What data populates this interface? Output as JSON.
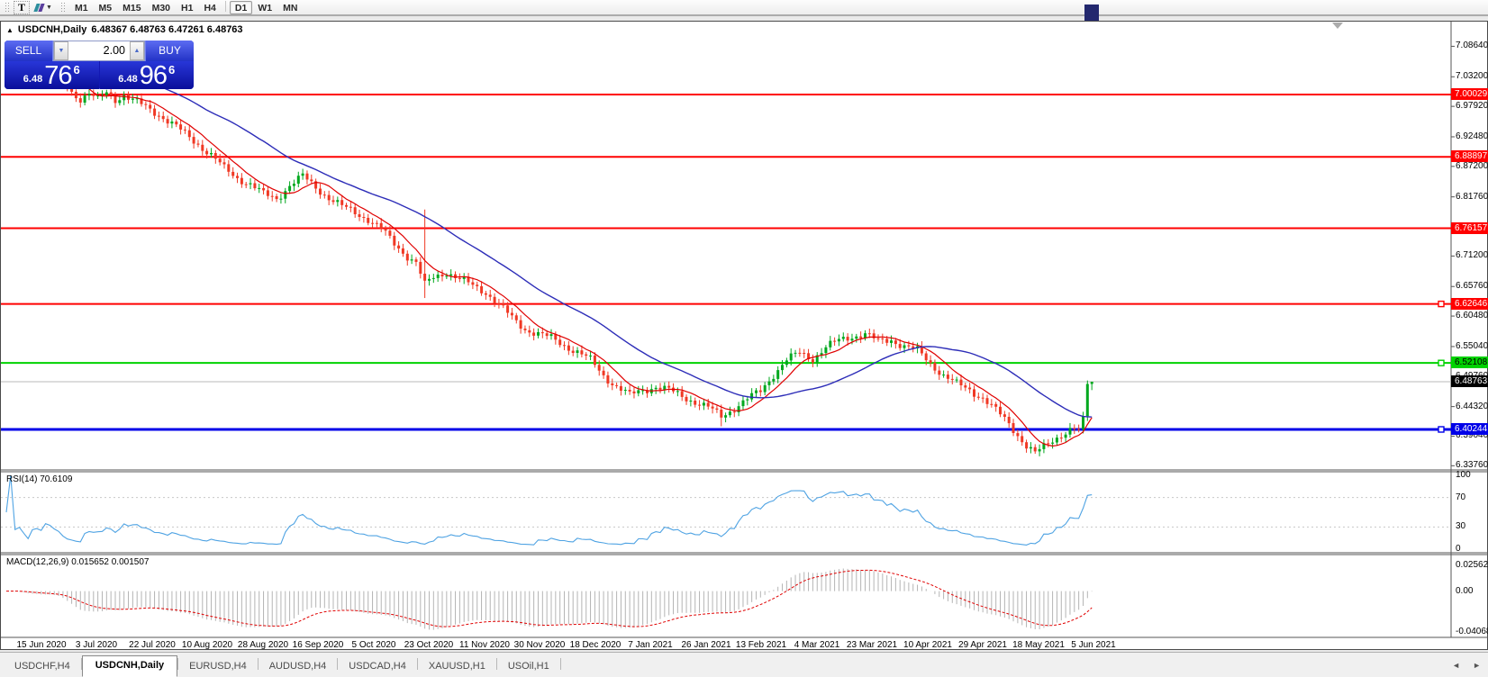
{
  "icons": {
    "collapse": "▲",
    "drop_caret": "▼",
    "spinner_up": "▲",
    "spinner_down": "▼",
    "tab_scroll_left": "◄",
    "tab_scroll_right": "►",
    "text_tool": "T"
  },
  "toolbar": {
    "timeframes": [
      "M1",
      "M5",
      "M15",
      "M30",
      "H1",
      "H4",
      "D1",
      "W1",
      "MN"
    ],
    "active_timeframe": "D1"
  },
  "chart": {
    "title": "USDCNH,Daily",
    "ohlc": "6.48367 6.48763 6.47261 6.48763"
  },
  "trade_panel": {
    "sell_label": "SELL",
    "buy_label": "BUY",
    "volume": "2.00",
    "sell_price": {
      "small": "6.48",
      "big": "76",
      "sup": "6"
    },
    "buy_price": {
      "small": "6.48",
      "big": "96",
      "sup": "6"
    }
  },
  "rsi": {
    "label": "RSI(14) 70.6109",
    "value": 70.6109
  },
  "macd": {
    "label": "MACD(12,26,9) 0.015652 0.001507",
    "values": [
      0.015652,
      0.001507
    ]
  },
  "tabs": {
    "items": [
      "USDCHF,H4",
      "USDCNH,Daily",
      "EURUSD,H4",
      "AUDUSD,H4",
      "USDCAD,H4",
      "XAUUSD,H1",
      "USOil,H1"
    ],
    "active": "USDCNH,Daily"
  },
  "chart_data": {
    "type": "candlestick",
    "symbol": "USDCNH",
    "timeframe": "Daily",
    "last_bar_ohlc": {
      "open": 6.48367,
      "high": 6.48763,
      "low": 6.47261,
      "close": 6.48763
    },
    "current_price": {
      "value": "6.48763",
      "numeric": 6.48763,
      "line_color": "#B8B8B8",
      "label_bg": "#000000"
    },
    "up_color": "#00A81E",
    "down_color": "#F03824",
    "price_axis_ticks": [
      "7.08640",
      "7.03200",
      "6.97920",
      "6.92480",
      "6.87200",
      "6.81760",
      "6.76320",
      "6.71200",
      "6.65760",
      "6.60480",
      "6.55040",
      "6.49760",
      "6.44320",
      "6.39040",
      "6.33760"
    ],
    "horizontal_lines": [
      {
        "price": 7.00029,
        "label": "7.00029",
        "color": "#FF0000",
        "text": "#FFFFFF",
        "width": 2,
        "handle": false
      },
      {
        "price": 6.88897,
        "label": "6.88897",
        "color": "#FF0000",
        "text": "#FFFFFF",
        "width": 2,
        "handle": false
      },
      {
        "price": 6.76157,
        "label": "6.76157",
        "color": "#FF0000",
        "text": "#FFFFFF",
        "width": 2,
        "handle": false
      },
      {
        "price": 6.62646,
        "label": "6.62646",
        "color": "#FF0000",
        "text": "#FFFFFF",
        "width": 2,
        "handle": true
      },
      {
        "price": 6.52108,
        "label": "6.52108",
        "color": "#00D200",
        "text": "#000000",
        "width": 2,
        "handle": true
      },
      {
        "price": 6.40244,
        "label": "6.40244",
        "color": "#0000E8",
        "text": "#FFFFFF",
        "width": 3,
        "handle": true
      }
    ],
    "moving_averages": [
      {
        "period": 8,
        "method": "SMA",
        "color": "#E00000"
      },
      {
        "period": 34,
        "method": "SMA",
        "color": "#2D2DB8"
      }
    ],
    "price_keypoints": [
      [
        0,
        7.075
      ],
      [
        4,
        7.062
      ],
      [
        8,
        7.068
      ],
      [
        11,
        7.055
      ],
      [
        13,
        7.03
      ],
      [
        15,
        7.005
      ],
      [
        17,
        6.993
      ],
      [
        19,
        7.002
      ],
      [
        21,
        6.99
      ],
      [
        23,
        7.004
      ],
      [
        25,
        6.992
      ],
      [
        27,
        6.999
      ],
      [
        29,
        6.99
      ],
      [
        32,
        6.978
      ],
      [
        35,
        6.965
      ],
      [
        38,
        6.948
      ],
      [
        41,
        6.93
      ],
      [
        44,
        6.912
      ],
      [
        47,
        6.892
      ],
      [
        50,
        6.868
      ],
      [
        53,
        6.852
      ],
      [
        56,
        6.84
      ],
      [
        59,
        6.822
      ],
      [
        62,
        6.815
      ],
      [
        65,
        6.838
      ],
      [
        68,
        6.854
      ],
      [
        71,
        6.835
      ],
      [
        74,
        6.816
      ],
      [
        77,
        6.8
      ],
      [
        80,
        6.79
      ],
      [
        83,
        6.778
      ],
      [
        86,
        6.76
      ],
      [
        89,
        6.734
      ],
      [
        92,
        6.712
      ],
      [
        94,
        6.7
      ],
      [
        96,
        6.66
      ],
      [
        98,
        6.674
      ],
      [
        101,
        6.684
      ],
      [
        104,
        6.67
      ],
      [
        107,
        6.659
      ],
      [
        110,
        6.648
      ],
      [
        113,
        6.625
      ],
      [
        116,
        6.601
      ],
      [
        119,
        6.582
      ],
      [
        122,
        6.573
      ],
      [
        125,
        6.565
      ],
      [
        128,
        6.553
      ],
      [
        131,
        6.541
      ],
      [
        134,
        6.526
      ],
      [
        137,
        6.499
      ],
      [
        140,
        6.479
      ],
      [
        143,
        6.463
      ],
      [
        146,
        6.473
      ],
      [
        149,
        6.479
      ],
      [
        152,
        6.472
      ],
      [
        155,
        6.462
      ],
      [
        158,
        6.452
      ],
      [
        161,
        6.441
      ],
      [
        164,
        6.426
      ],
      [
        167,
        6.441
      ],
      [
        170,
        6.456
      ],
      [
        173,
        6.471
      ],
      [
        176,
        6.501
      ],
      [
        179,
        6.526
      ],
      [
        182,
        6.539
      ],
      [
        185,
        6.529
      ],
      [
        188,
        6.549
      ],
      [
        191,
        6.561
      ],
      [
        194,
        6.569
      ],
      [
        197,
        6.573
      ],
      [
        200,
        6.559
      ],
      [
        203,
        6.563
      ],
      [
        206,
        6.551
      ],
      [
        209,
        6.543
      ],
      [
        212,
        6.521
      ],
      [
        215,
        6.499
      ],
      [
        218,
        6.483
      ],
      [
        221,
        6.473
      ],
      [
        224,
        6.459
      ],
      [
        227,
        6.436
      ],
      [
        230,
        6.413
      ],
      [
        232,
        6.393
      ],
      [
        234,
        6.373
      ],
      [
        236,
        6.359
      ],
      [
        238,
        6.371
      ],
      [
        240,
        6.384
      ],
      [
        242,
        6.394
      ],
      [
        244,
        6.401
      ],
      [
        246,
        6.403
      ],
      [
        247,
        6.426
      ],
      [
        248,
        6.4835
      ],
      [
        249,
        6.4876
      ]
    ],
    "wick_spikes": [
      {
        "bar": 96,
        "high": 6.795,
        "low": 6.637
      },
      {
        "bar": 164,
        "low": 6.408
      }
    ],
    "indicators": [
      {
        "name": "RSI",
        "params": [
          14
        ],
        "value": 70.6109,
        "levels": [
          70,
          30
        ],
        "axis_ticks": [
          "100",
          "70",
          "30",
          "0"
        ],
        "range": [
          0,
          100
        ],
        "color": "#4FA3E3"
      },
      {
        "name": "MACD",
        "params": [
          12,
          26,
          9
        ],
        "values": [
          0.015652,
          0.001507
        ],
        "axis_ticks": [
          "0.025623",
          "0.00",
          "-0.040687"
        ],
        "range": [
          -0.040687,
          0.025623
        ],
        "histogram_color": "#B4B4B4",
        "signal_color": "#E00000",
        "signal_style": "dashed"
      }
    ],
    "time_axis_labels": [
      "15 Jun 2020",
      "3 Jul 2020",
      "22 Jul 2020",
      "10 Aug 2020",
      "28 Aug 2020",
      "16 Sep 2020",
      "5 Oct 2020",
      "23 Oct 2020",
      "11 Nov 2020",
      "30 Nov 2020",
      "18 Dec 2020",
      "7 Jan 2021",
      "26 Jan 2021",
      "13 Feb 2021",
      "4 Mar 2021",
      "23 Mar 2021",
      "10 Apr 2021",
      "29 Apr 2021",
      "18 May 2021",
      "5 Jun 2021"
    ]
  }
}
